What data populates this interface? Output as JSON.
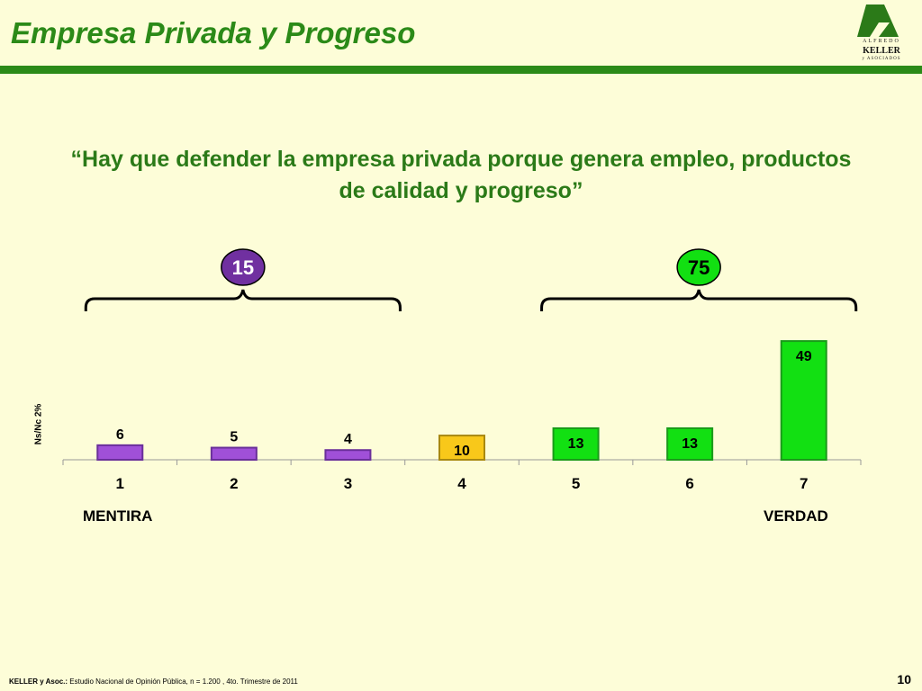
{
  "header": {
    "title": "Empresa Privada y Progreso",
    "logo_line1": "ALFREDO",
    "logo_line2": "KELLER",
    "logo_line3": "y ASOCIADOS"
  },
  "question": "“Hay que defender la empresa privada porque genera empleo, productos de calidad y progreso”",
  "chart_data": {
    "type": "bar",
    "categories": [
      "1",
      "2",
      "3",
      "4",
      "5",
      "6",
      "7"
    ],
    "values": [
      6,
      5,
      4,
      10,
      13,
      13,
      49
    ],
    "ylim": [
      0,
      52
    ],
    "grid": false,
    "bar_colors": [
      "#a050d8",
      "#a050d8",
      "#a050d8",
      "#f8c81a",
      "#12e012",
      "#12e012",
      "#12e012"
    ],
    "bar_borders": [
      "#6a2f9a",
      "#6a2f9a",
      "#6a2f9a",
      "#a88810",
      "#1a9a1a",
      "#1a9a1a",
      "#1a9a1a"
    ],
    "groups": [
      {
        "label": "15",
        "from": 0,
        "to": 2,
        "color": "#7030a0"
      },
      {
        "label": "75",
        "from": 4,
        "to": 6,
        "color": "#12e012"
      }
    ],
    "scale_left_label": "MENTIRA",
    "scale_right_label": "VERDAD",
    "nsnc_label": "Ns/Nc  2%"
  },
  "footer": {
    "source_bold": "KELLER y Asoc.:",
    "source_text": " Estudio Nacional de Opinión Pública, n = 1.200 , 4to. Trimestre de 2011",
    "page_number": "10"
  }
}
